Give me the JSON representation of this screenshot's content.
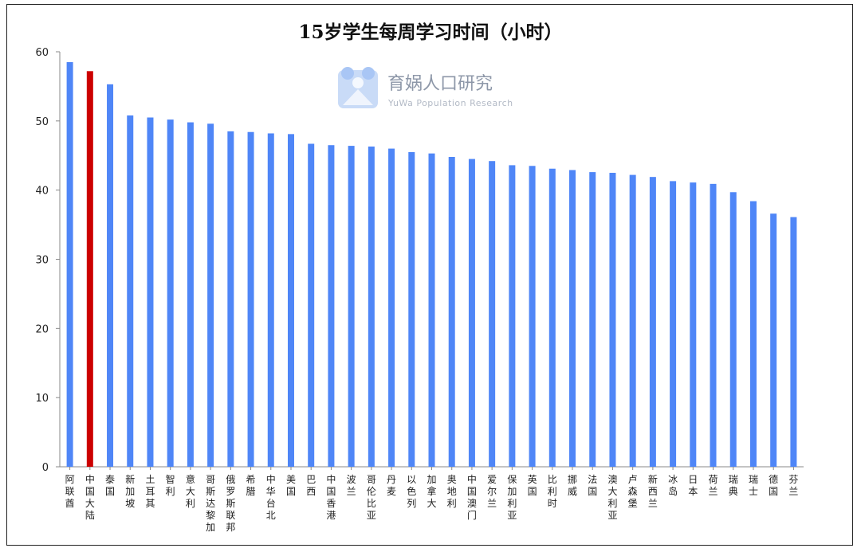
{
  "watermark": {
    "brand": "育娲人口研究",
    "brand_en": "YuWa Population Research"
  },
  "colors": {
    "bar": "#4f86f7",
    "highlight": "#cc0000",
    "axis": "#888888"
  },
  "chart_data": {
    "type": "bar",
    "title": "15岁学生每周学习时间（小时）",
    "xlabel": "",
    "ylabel": "",
    "ylim": [
      0,
      60
    ],
    "yticks": [
      0,
      10,
      20,
      30,
      40,
      50,
      60
    ],
    "grid": false,
    "highlight_category": "中国大陆",
    "categories": [
      "阿联酋",
      "中国大陆",
      "泰国",
      "新加坡",
      "土耳其",
      "智利",
      "意大利",
      "哥斯达黎加",
      "俄罗斯联邦",
      "希腊",
      "中华台北",
      "美国",
      "巴西",
      "中国香港",
      "波兰",
      "哥伦比亚",
      "丹麦",
      "以色列",
      "加拿大",
      "奥地利",
      "中国澳门",
      "爱尔兰",
      "保加利亚",
      "英国",
      "比利时",
      "挪威",
      "法国",
      "澳大利亚",
      "卢森堡",
      "新西兰",
      "冰岛",
      "日本",
      "荷兰",
      "瑞典",
      "瑞士",
      "德国",
      "芬兰"
    ],
    "values": [
      58.5,
      57.2,
      55.3,
      50.8,
      50.5,
      50.2,
      49.8,
      49.6,
      48.5,
      48.4,
      48.2,
      48.1,
      46.7,
      46.5,
      46.4,
      46.3,
      46.0,
      45.5,
      45.3,
      44.8,
      44.5,
      44.2,
      43.6,
      43.5,
      43.1,
      42.9,
      42.6,
      42.5,
      42.2,
      41.9,
      41.3,
      41.1,
      40.9,
      39.7,
      38.4,
      36.6,
      36.1
    ]
  }
}
